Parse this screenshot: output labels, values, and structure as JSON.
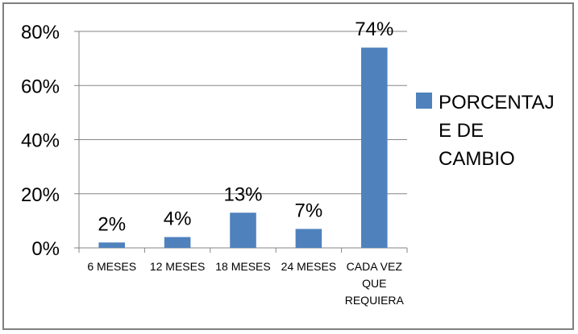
{
  "chart_data": {
    "type": "bar",
    "title": "",
    "xlabel": "",
    "ylabel": "",
    "categories": [
      [
        "6 MESES"
      ],
      [
        "12 MESES"
      ],
      [
        "18 MESES"
      ],
      [
        "24 MESES"
      ],
      [
        "CADA VEZ",
        "QUE",
        "REQUIERA"
      ]
    ],
    "series": [
      {
        "name": [
          "PORCENTAJ",
          "E DE",
          "CAMBIO"
        ],
        "values": [
          2,
          4,
          13,
          7,
          74
        ],
        "color": "#4f81bd"
      }
    ],
    "data_labels": [
      "2%",
      "4%",
      "13%",
      "7%",
      "74%"
    ],
    "ylim": [
      0,
      80
    ],
    "yticks": [
      {
        "value": 0,
        "label": "0%"
      },
      {
        "value": 20,
        "label": "20%"
      },
      {
        "value": 40,
        "label": "40%"
      },
      {
        "value": 60,
        "label": "60%"
      },
      {
        "value": 80,
        "label": "80%"
      }
    ],
    "grid": true,
    "legend": {
      "position": "right"
    },
    "gridline_color": "#868686",
    "axis_color": "#868686"
  }
}
